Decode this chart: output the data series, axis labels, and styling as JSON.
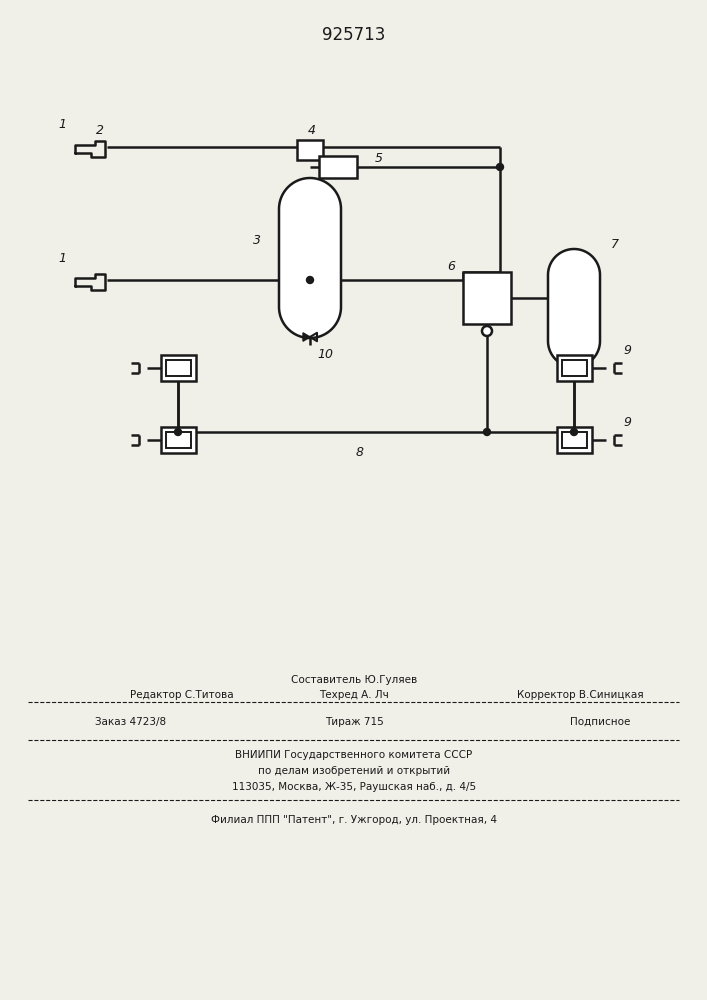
{
  "title": "925713",
  "bg_color": "#f0efe8",
  "line_color": "#1a1a1a",
  "lw": 1.5,
  "lw2": 1.8,
  "footer": {
    "line1": "Составитель Ю.Гуляев",
    "line2a": "Редактор С.Титова",
    "line2b": "Техред А. Лч",
    "line2c": "Корректор В.Синицкая",
    "line3a": "Заказ 4723/8",
    "line3b": "Тираж 715",
    "line3c": "Подписное",
    "line4": "ВНИИПИ Государственного комитета СССР",
    "line5": "по делам изобретений и открытий",
    "line6": "113035, Москва, Ж-35, Раушская наб., д. 4/5",
    "line7": "Филиал ППП \"Патент\", г. Ужгород, ул. Проектная, 4"
  }
}
